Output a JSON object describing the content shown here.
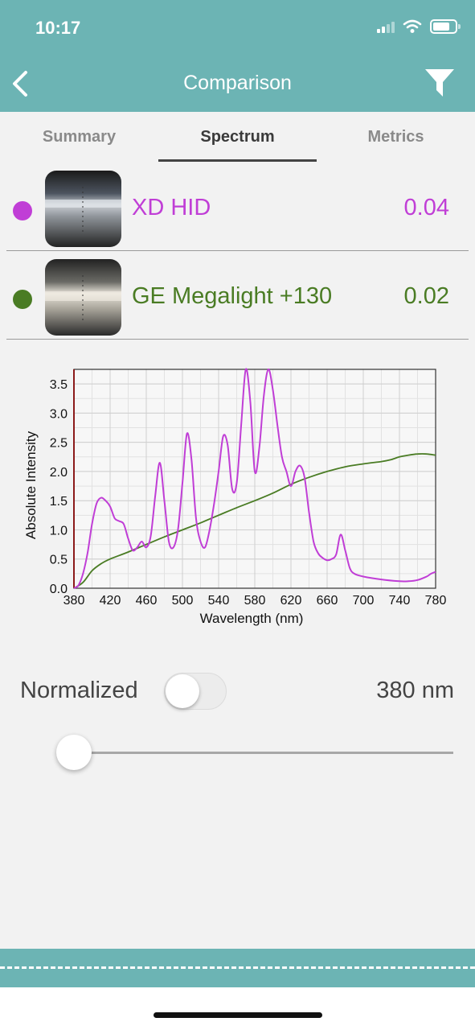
{
  "status_bar": {
    "time": "10:17",
    "signal_icon": "cellular-signal-icon",
    "wifi_icon": "wifi-icon",
    "battery_icon": "battery-icon"
  },
  "header": {
    "title": "Comparison",
    "back_icon": "chevron-left-icon",
    "filter_icon": "filter-funnel-icon",
    "background": "#6cb4b4"
  },
  "tabs": [
    {
      "label": "Summary",
      "active": false
    },
    {
      "label": "Spectrum",
      "active": true
    },
    {
      "label": "Metrics",
      "active": false
    }
  ],
  "items": [
    {
      "name": "XD HID",
      "value": "0.04",
      "color": "#c03ed6"
    },
    {
      "name": "GE Megalight +130",
      "value": "0.02",
      "color": "#4a7c24"
    }
  ],
  "chart_data": {
    "type": "line",
    "xlabel": "Wavelength (nm)",
    "ylabel": "Absolute Intensity",
    "xlim": [
      380,
      780
    ],
    "ylim": [
      0,
      3.75
    ],
    "xticks": [
      380,
      420,
      460,
      500,
      540,
      580,
      620,
      660,
      700,
      740,
      780
    ],
    "yticks": [
      "0.0",
      "0.5",
      "1.0",
      "1.5",
      "2.0",
      "2.5",
      "3.0",
      "3.5"
    ],
    "grid": true,
    "series": [
      {
        "name": "XD HID",
        "color": "#c03ed6",
        "x": [
          380,
          385,
          390,
          395,
          400,
          405,
          410,
          415,
          420,
          425,
          430,
          435,
          440,
          445,
          450,
          455,
          460,
          465,
          470,
          475,
          480,
          485,
          490,
          495,
          500,
          505,
          510,
          515,
          520,
          525,
          530,
          535,
          540,
          545,
          550,
          555,
          560,
          565,
          570,
          575,
          580,
          585,
          590,
          595,
          600,
          605,
          610,
          615,
          620,
          625,
          630,
          635,
          640,
          645,
          650,
          655,
          660,
          665,
          670,
          675,
          680,
          685,
          690,
          700,
          720,
          740,
          750,
          760,
          770,
          775,
          780
        ],
        "y": [
          0.0,
          0.05,
          0.25,
          0.6,
          1.1,
          1.45,
          1.55,
          1.5,
          1.4,
          1.2,
          1.15,
          1.1,
          0.85,
          0.65,
          0.7,
          0.8,
          0.7,
          0.9,
          1.6,
          2.15,
          1.5,
          0.8,
          0.7,
          1.0,
          1.8,
          2.65,
          2.2,
          1.2,
          0.8,
          0.7,
          1.0,
          1.45,
          2.0,
          2.6,
          2.45,
          1.7,
          1.8,
          2.8,
          3.75,
          3.2,
          2.0,
          2.4,
          3.3,
          3.8,
          3.4,
          2.8,
          2.25,
          2.0,
          1.75,
          2.0,
          2.1,
          1.9,
          1.3,
          0.8,
          0.6,
          0.52,
          0.48,
          0.5,
          0.58,
          0.92,
          0.65,
          0.35,
          0.25,
          0.2,
          0.15,
          0.12,
          0.12,
          0.14,
          0.2,
          0.25,
          0.28
        ]
      },
      {
        "name": "GE Megalight +130",
        "color": "#4a7c24",
        "x": [
          380,
          390,
          400,
          410,
          420,
          440,
          460,
          480,
          500,
          520,
          540,
          560,
          580,
          600,
          620,
          640,
          660,
          680,
          700,
          720,
          730,
          740,
          750,
          760,
          770,
          780
        ],
        "y": [
          0.0,
          0.1,
          0.3,
          0.42,
          0.5,
          0.62,
          0.75,
          0.88,
          1.0,
          1.12,
          1.25,
          1.38,
          1.5,
          1.63,
          1.78,
          1.9,
          2.0,
          2.08,
          2.13,
          2.17,
          2.2,
          2.25,
          2.28,
          2.3,
          2.3,
          2.28
        ]
      }
    ]
  },
  "controls": {
    "normalized_label": "Normalized",
    "normalized_on": false,
    "wavelength_readout": "380 nm",
    "slider_value_nm": 380,
    "slider_range_nm": [
      380,
      780
    ]
  }
}
